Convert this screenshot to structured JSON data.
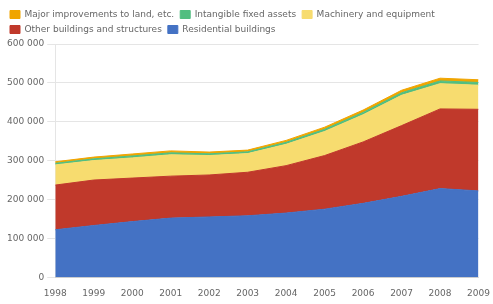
{
  "chart_data": {
    "type": "stacked_area",
    "x": [
      1998,
      1999,
      2000,
      2001,
      2002,
      2003,
      2004,
      2005,
      2006,
      2007,
      2008,
      2009
    ],
    "series": [
      {
        "name": "Residential buildings",
        "color": "#4472C4",
        "values": [
          122000,
          133000,
          143000,
          152000,
          155000,
          158000,
          165000,
          175000,
          190000,
          208000,
          228000,
          222000
        ]
      },
      {
        "name": "Other buildings and structures",
        "color": "#C0392B",
        "values": [
          115000,
          117000,
          112000,
          108000,
          108000,
          112000,
          122000,
          138000,
          158000,
          182000,
          205000,
          210000
        ]
      },
      {
        "name": "Machinery and equipment",
        "color": "#F7DC6F",
        "values": [
          52000,
          50000,
          52000,
          55000,
          50000,
          48000,
          55000,
          62000,
          70000,
          78000,
          65000,
          62000
        ]
      },
      {
        "name": "Intangible fixed assets",
        "color": "#52BE80",
        "values": [
          4000,
          4500,
          5000,
          5000,
          4500,
          4500,
          5000,
          5500,
          6000,
          6500,
          7000,
          7000
        ]
      },
      {
        "name": "Major improvements to land, etc.",
        "color": "#F0A500",
        "values": [
          4000,
          4500,
          5000,
          5000,
          4500,
          4500,
          5000,
          5500,
          6000,
          6500,
          7000,
          7000
        ]
      }
    ],
    "stacked": true,
    "xlim": [
      1998,
      2009
    ],
    "xticks": [
      1998,
      1999,
      2000,
      2001,
      2002,
      2003,
      2004,
      2005,
      2006,
      2007,
      2008,
      2009
    ],
    "ylim": [
      0,
      600000
    ],
    "yticks": [
      0,
      {
        "value": 100000,
        "label": "100 000"
      },
      {
        "value": 200000,
        "label": "200 000"
      },
      {
        "value": 300000,
        "label": "300 000"
      },
      {
        "value": 400000,
        "label": "400 000"
      },
      {
        "value": 500000,
        "label": "500 000"
      },
      {
        "value": 600000,
        "label": "600 000"
      }
    ],
    "grid": true,
    "legend": "upper left"
  }
}
